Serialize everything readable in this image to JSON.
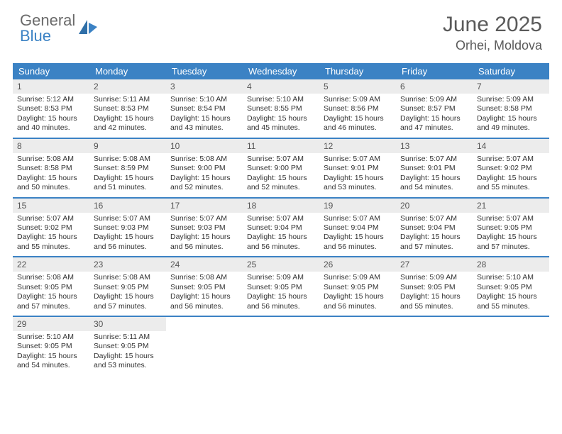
{
  "brand": {
    "part1": "General",
    "part2": "Blue"
  },
  "title": "June 2025",
  "location": "Orhei, Moldova",
  "colors": {
    "header_bar": "#3b82c4",
    "daynum_bg": "#ececec",
    "text": "#333333",
    "title_text": "#5a5a5a"
  },
  "dow": [
    "Sunday",
    "Monday",
    "Tuesday",
    "Wednesday",
    "Thursday",
    "Friday",
    "Saturday"
  ],
  "days": [
    {
      "n": 1,
      "sunrise": "5:12 AM",
      "sunset": "8:53 PM",
      "daylight": "15 hours and 40 minutes."
    },
    {
      "n": 2,
      "sunrise": "5:11 AM",
      "sunset": "8:53 PM",
      "daylight": "15 hours and 42 minutes."
    },
    {
      "n": 3,
      "sunrise": "5:10 AM",
      "sunset": "8:54 PM",
      "daylight": "15 hours and 43 minutes."
    },
    {
      "n": 4,
      "sunrise": "5:10 AM",
      "sunset": "8:55 PM",
      "daylight": "15 hours and 45 minutes."
    },
    {
      "n": 5,
      "sunrise": "5:09 AM",
      "sunset": "8:56 PM",
      "daylight": "15 hours and 46 minutes."
    },
    {
      "n": 6,
      "sunrise": "5:09 AM",
      "sunset": "8:57 PM",
      "daylight": "15 hours and 47 minutes."
    },
    {
      "n": 7,
      "sunrise": "5:09 AM",
      "sunset": "8:58 PM",
      "daylight": "15 hours and 49 minutes."
    },
    {
      "n": 8,
      "sunrise": "5:08 AM",
      "sunset": "8:58 PM",
      "daylight": "15 hours and 50 minutes."
    },
    {
      "n": 9,
      "sunrise": "5:08 AM",
      "sunset": "8:59 PM",
      "daylight": "15 hours and 51 minutes."
    },
    {
      "n": 10,
      "sunrise": "5:08 AM",
      "sunset": "9:00 PM",
      "daylight": "15 hours and 52 minutes."
    },
    {
      "n": 11,
      "sunrise": "5:07 AM",
      "sunset": "9:00 PM",
      "daylight": "15 hours and 52 minutes."
    },
    {
      "n": 12,
      "sunrise": "5:07 AM",
      "sunset": "9:01 PM",
      "daylight": "15 hours and 53 minutes."
    },
    {
      "n": 13,
      "sunrise": "5:07 AM",
      "sunset": "9:01 PM",
      "daylight": "15 hours and 54 minutes."
    },
    {
      "n": 14,
      "sunrise": "5:07 AM",
      "sunset": "9:02 PM",
      "daylight": "15 hours and 55 minutes."
    },
    {
      "n": 15,
      "sunrise": "5:07 AM",
      "sunset": "9:02 PM",
      "daylight": "15 hours and 55 minutes."
    },
    {
      "n": 16,
      "sunrise": "5:07 AM",
      "sunset": "9:03 PM",
      "daylight": "15 hours and 56 minutes."
    },
    {
      "n": 17,
      "sunrise": "5:07 AM",
      "sunset": "9:03 PM",
      "daylight": "15 hours and 56 minutes."
    },
    {
      "n": 18,
      "sunrise": "5:07 AM",
      "sunset": "9:04 PM",
      "daylight": "15 hours and 56 minutes."
    },
    {
      "n": 19,
      "sunrise": "5:07 AM",
      "sunset": "9:04 PM",
      "daylight": "15 hours and 56 minutes."
    },
    {
      "n": 20,
      "sunrise": "5:07 AM",
      "sunset": "9:04 PM",
      "daylight": "15 hours and 57 minutes."
    },
    {
      "n": 21,
      "sunrise": "5:07 AM",
      "sunset": "9:05 PM",
      "daylight": "15 hours and 57 minutes."
    },
    {
      "n": 22,
      "sunrise": "5:08 AM",
      "sunset": "9:05 PM",
      "daylight": "15 hours and 57 minutes."
    },
    {
      "n": 23,
      "sunrise": "5:08 AM",
      "sunset": "9:05 PM",
      "daylight": "15 hours and 57 minutes."
    },
    {
      "n": 24,
      "sunrise": "5:08 AM",
      "sunset": "9:05 PM",
      "daylight": "15 hours and 56 minutes."
    },
    {
      "n": 25,
      "sunrise": "5:09 AM",
      "sunset": "9:05 PM",
      "daylight": "15 hours and 56 minutes."
    },
    {
      "n": 26,
      "sunrise": "5:09 AM",
      "sunset": "9:05 PM",
      "daylight": "15 hours and 56 minutes."
    },
    {
      "n": 27,
      "sunrise": "5:09 AM",
      "sunset": "9:05 PM",
      "daylight": "15 hours and 55 minutes."
    },
    {
      "n": 28,
      "sunrise": "5:10 AM",
      "sunset": "9:05 PM",
      "daylight": "15 hours and 55 minutes."
    },
    {
      "n": 29,
      "sunrise": "5:10 AM",
      "sunset": "9:05 PM",
      "daylight": "15 hours and 54 minutes."
    },
    {
      "n": 30,
      "sunrise": "5:11 AM",
      "sunset": "9:05 PM",
      "daylight": "15 hours and 53 minutes."
    }
  ],
  "labels": {
    "sunrise": "Sunrise:",
    "sunset": "Sunset:",
    "daylight": "Daylight:"
  },
  "first_dow_index": 0,
  "days_in_month": 30
}
